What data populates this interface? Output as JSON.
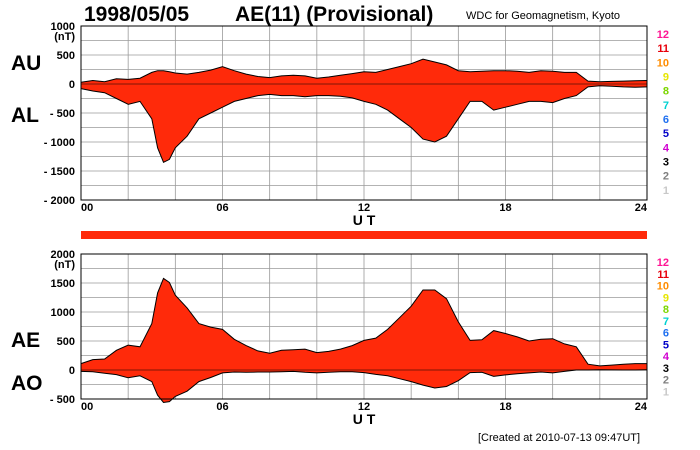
{
  "header": {
    "date": "1998/05/05",
    "index_title": "AE(11) (Provisional)",
    "source": "WDC for Geomagnetism, Kyoto"
  },
  "footer": {
    "created": "[Created at 2010-07-13 09:47UT]"
  },
  "legend_stations": [
    {
      "label": "12",
      "color": "#ff1493"
    },
    {
      "label": "11",
      "color": "#e8000b"
    },
    {
      "label": "10",
      "color": "#ff8c00"
    },
    {
      "label": "9",
      "color": "#e6e600"
    },
    {
      "label": "8",
      "color": "#7cd600"
    },
    {
      "label": "7",
      "color": "#00d1d1"
    },
    {
      "label": "6",
      "color": "#1e6ff0"
    },
    {
      "label": "5",
      "color": "#0000c8"
    },
    {
      "label": "4",
      "color": "#d000d0"
    },
    {
      "label": "3",
      "color": "#000000"
    },
    {
      "label": "2",
      "color": "#7f7f7f"
    },
    {
      "label": "1",
      "color": "#c8c8c8"
    }
  ],
  "colors": {
    "fill": "#ff2a0a",
    "outline": "#000000",
    "grid": "#9a9a9a",
    "stripe": "#ff2a0a"
  },
  "chart_data": [
    {
      "type": "area",
      "labels_upper": "AU",
      "labels_lower": "AL",
      "xlabel": "U T",
      "ylabel": "(nT)",
      "xlim": [
        0,
        24
      ],
      "ylim": [
        -2000,
        1000
      ],
      "xticks": [
        "00",
        "06",
        "12",
        "18",
        "24"
      ],
      "yticks": [
        "1000",
        "500",
        "0",
        "- 500",
        "- 1000",
        "- 1500",
        "- 2000"
      ],
      "grid": true,
      "x": [
        0,
        0.5,
        1,
        1.5,
        2,
        2.5,
        3,
        3.25,
        3.5,
        3.75,
        4,
        4.5,
        5,
        5.5,
        6,
        6.5,
        7,
        7.5,
        8,
        8.5,
        9,
        9.5,
        10,
        10.5,
        11,
        11.5,
        12,
        12.5,
        13,
        13.5,
        14,
        14.5,
        15,
        15.5,
        16,
        16.5,
        17,
        17.5,
        18,
        18.5,
        19,
        19.5,
        20,
        20.5,
        21,
        21.5,
        22,
        22.5,
        23,
        23.5,
        24
      ],
      "series": [
        {
          "name": "AU",
          "values": [
            30,
            60,
            40,
            90,
            80,
            100,
            200,
            230,
            230,
            210,
            190,
            170,
            200,
            240,
            300,
            230,
            170,
            130,
            110,
            140,
            150,
            140,
            100,
            120,
            150,
            180,
            210,
            200,
            250,
            300,
            350,
            430,
            380,
            330,
            230,
            210,
            220,
            230,
            230,
            220,
            200,
            230,
            220,
            200,
            200,
            50,
            40,
            45,
            50,
            55,
            60
          ]
        },
        {
          "name": "AL",
          "values": [
            -80,
            -120,
            -150,
            -250,
            -350,
            -300,
            -600,
            -1100,
            -1350,
            -1300,
            -1100,
            -900,
            -600,
            -500,
            -400,
            -300,
            -250,
            -200,
            -180,
            -200,
            -200,
            -220,
            -200,
            -200,
            -210,
            -240,
            -300,
            -350,
            -450,
            -600,
            -750,
            -950,
            -1000,
            -900,
            -600,
            -300,
            -300,
            -450,
            -400,
            -350,
            -300,
            -300,
            -320,
            -250,
            -200,
            -50,
            -30,
            -40,
            -50,
            -55,
            -50
          ]
        }
      ]
    },
    {
      "type": "area",
      "labels_upper": "AE",
      "labels_lower": "AO",
      "xlabel": "U T",
      "ylabel": "(nT)",
      "xlim": [
        0,
        24
      ],
      "ylim": [
        -500,
        2000
      ],
      "xticks": [
        "00",
        "06",
        "12",
        "18",
        "24"
      ],
      "yticks": [
        "2000",
        "1500",
        "1000",
        "500",
        "0",
        "- 500"
      ],
      "grid": true,
      "x": [
        0,
        0.5,
        1,
        1.5,
        2,
        2.5,
        3,
        3.25,
        3.5,
        3.75,
        4,
        4.5,
        5,
        5.5,
        6,
        6.5,
        7,
        7.5,
        8,
        8.5,
        9,
        9.5,
        10,
        10.5,
        11,
        11.5,
        12,
        12.5,
        13,
        13.5,
        14,
        14.5,
        15,
        15.5,
        16,
        16.5,
        17,
        17.5,
        18,
        18.5,
        19,
        19.5,
        20,
        20.5,
        21,
        21.5,
        22,
        22.5,
        23,
        23.5,
        24
      ],
      "series": [
        {
          "name": "AE",
          "values": [
            110,
            180,
            190,
            340,
            430,
            400,
            800,
            1330,
            1580,
            1510,
            1290,
            1070,
            800,
            740,
            700,
            530,
            420,
            330,
            290,
            340,
            350,
            360,
            300,
            320,
            360,
            420,
            510,
            550,
            700,
            900,
            1100,
            1380,
            1380,
            1230,
            830,
            510,
            520,
            680,
            630,
            570,
            500,
            530,
            540,
            450,
            400,
            100,
            70,
            85,
            100,
            110,
            110
          ]
        },
        {
          "name": "AO",
          "values": [
            -25,
            -30,
            -55,
            -80,
            -135,
            -100,
            -200,
            -435,
            -560,
            -545,
            -455,
            -365,
            -200,
            -130,
            -50,
            -35,
            -40,
            -35,
            -35,
            -30,
            -25,
            -40,
            -50,
            -40,
            -30,
            -30,
            -45,
            -75,
            -100,
            -150,
            -200,
            -260,
            -310,
            -285,
            -185,
            -45,
            -40,
            -110,
            -85,
            -65,
            -50,
            -35,
            -50,
            -25,
            0,
            0,
            5,
            2,
            0,
            0,
            5
          ]
        }
      ]
    }
  ]
}
